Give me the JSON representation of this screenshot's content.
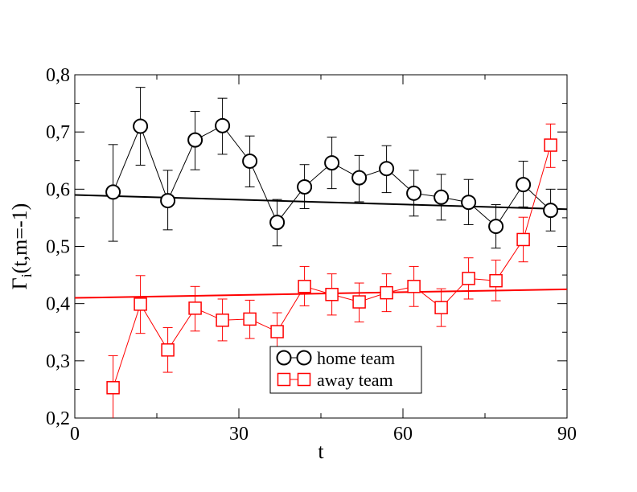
{
  "chart_data": {
    "type": "scatter",
    "xlabel": "t",
    "ylabel": "Γ_i(t,m=-1)",
    "ylabel_main": "Γ",
    "ylabel_sub": "i",
    "ylabel_rest": "(t,m=-1)",
    "xlim": [
      0,
      90
    ],
    "ylim": [
      0.2,
      0.8
    ],
    "x_ticks": [
      0,
      30,
      60,
      90
    ],
    "x_tick_labels": [
      "0",
      "30",
      "60",
      "90"
    ],
    "y_ticks": [
      0.2,
      0.3,
      0.4,
      0.5,
      0.6,
      0.7,
      0.8
    ],
    "y_tick_labels": [
      "0,2",
      "0,3",
      "0,4",
      "0,5",
      "0,6",
      "0,7",
      "0,8"
    ],
    "grid": false,
    "legend_position": "bottom-center",
    "series": [
      {
        "name": "home team",
        "color": "#000000",
        "marker": "circle",
        "x": [
          7,
          12,
          17,
          22,
          27,
          32,
          37,
          42,
          47,
          52,
          57,
          62,
          67,
          72,
          77,
          82,
          87
        ],
        "y": [
          0.595,
          0.71,
          0.58,
          0.686,
          0.711,
          0.649,
          0.542,
          0.604,
          0.646,
          0.62,
          0.636,
          0.593,
          0.586,
          0.577,
          0.535,
          0.608,
          0.563
        ],
        "err_low": [
          0.509,
          0.642,
          0.529,
          0.634,
          0.661,
          0.604,
          0.501,
          0.566,
          0.601,
          0.578,
          0.594,
          0.553,
          0.546,
          0.538,
          0.497,
          0.569,
          0.527
        ],
        "err_high": [
          0.678,
          0.778,
          0.633,
          0.736,
          0.759,
          0.693,
          0.582,
          0.643,
          0.691,
          0.659,
          0.676,
          0.633,
          0.626,
          0.617,
          0.573,
          0.649,
          0.6
        ],
        "fit": {
          "x": [
            0,
            90
          ],
          "y": [
            0.59,
            0.565
          ]
        }
      },
      {
        "name": "away team",
        "color": "#ff0000",
        "marker": "square",
        "x": [
          7,
          12,
          17,
          22,
          27,
          32,
          37,
          42,
          47,
          52,
          57,
          62,
          67,
          72,
          77,
          82,
          87
        ],
        "y": [
          0.253,
          0.399,
          0.319,
          0.392,
          0.371,
          0.373,
          0.351,
          0.43,
          0.416,
          0.403,
          0.419,
          0.43,
          0.393,
          0.444,
          0.44,
          0.512,
          0.677
        ],
        "err_low": [
          0.2,
          0.348,
          0.28,
          0.352,
          0.335,
          0.339,
          0.318,
          0.396,
          0.38,
          0.368,
          0.386,
          0.395,
          0.36,
          0.408,
          0.405,
          0.473,
          0.638
        ],
        "err_high": [
          0.309,
          0.449,
          0.358,
          0.43,
          0.408,
          0.406,
          0.384,
          0.465,
          0.452,
          0.436,
          0.452,
          0.465,
          0.426,
          0.48,
          0.476,
          0.551,
          0.714
        ],
        "fit": {
          "x": [
            0,
            90
          ],
          "y": [
            0.41,
            0.425
          ]
        }
      }
    ]
  }
}
